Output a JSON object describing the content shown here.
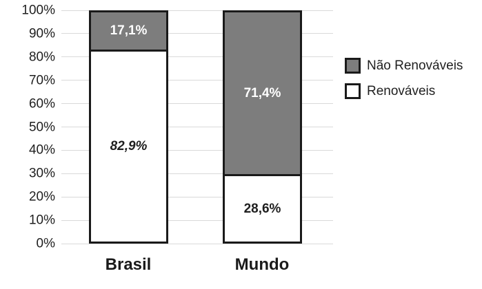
{
  "chart_data": {
    "type": "bar",
    "subtype": "stacked-100",
    "title": "",
    "xlabel": "",
    "ylabel": "",
    "categories": [
      "Brasil",
      "Mundo"
    ],
    "series": [
      {
        "name": "Renováveis",
        "values": [
          82.9,
          28.6
        ],
        "data_labels": [
          "82,9%",
          "28,6%"
        ],
        "fill": "#ffffff",
        "border": "#1a1a1a",
        "label_color": "#1f1f1f",
        "label_italic": [
          true,
          false
        ]
      },
      {
        "name": "Não Renováveis",
        "values": [
          17.1,
          71.4
        ],
        "data_labels": [
          "17,1%",
          "71,4%"
        ],
        "fill": "#7d7d7d",
        "border": "#1a1a1a",
        "label_color": "#ffffff",
        "label_italic": [
          false,
          false
        ]
      }
    ],
    "ylim": [
      0,
      100
    ],
    "ytick_step": 10,
    "ytick_labels": [
      "0%",
      "10%",
      "20%",
      "30%",
      "40%",
      "50%",
      "60%",
      "70%",
      "80%",
      "90%",
      "100%"
    ],
    "grid": true,
    "gridline_color": "#d9d9d9",
    "legend": {
      "position": "right",
      "items": [
        {
          "label": "Não Renováveis",
          "swatch_fill": "#7d7d7d"
        },
        {
          "label": "Renováveis",
          "swatch_fill": "#ffffff"
        }
      ]
    }
  }
}
